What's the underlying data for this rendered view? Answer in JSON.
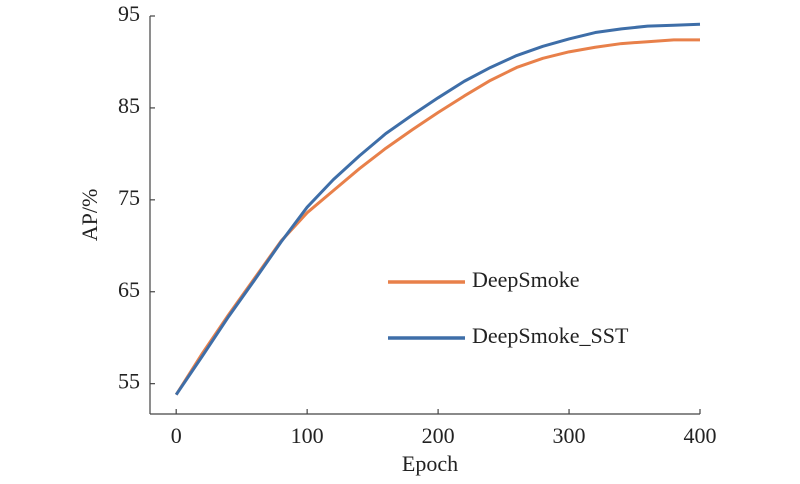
{
  "chart_data": {
    "type": "line",
    "x_label": "Epoch",
    "y_label": "AP/%",
    "x": [
      0,
      20,
      40,
      60,
      80,
      100,
      120,
      140,
      160,
      180,
      200,
      220,
      240,
      260,
      280,
      300,
      320,
      340,
      360,
      380,
      400
    ],
    "series": [
      {
        "name": "DeepSmoke",
        "color": "#e8804a",
        "values": [
          53.8,
          58.3,
          62.5,
          66.5,
          70.5,
          73.6,
          76.0,
          78.4,
          80.6,
          82.6,
          84.5,
          86.3,
          88.0,
          89.4,
          90.4,
          91.1,
          91.6,
          92.0,
          92.2,
          92.4,
          92.4
        ]
      },
      {
        "name": "DeepSmoke_SST",
        "color": "#3e6ea8",
        "values": [
          53.8,
          58.0,
          62.3,
          66.3,
          70.4,
          74.2,
          77.2,
          79.8,
          82.2,
          84.2,
          86.1,
          87.9,
          89.4,
          90.7,
          91.7,
          92.5,
          93.2,
          93.6,
          93.9,
          94.0,
          94.1
        ]
      }
    ],
    "xlim": [
      -20,
      400
    ],
    "ylim": [
      51.7,
      95
    ],
    "xticks": [
      0,
      100,
      200,
      300,
      400
    ],
    "yticks": [
      55,
      65,
      75,
      85,
      95
    ],
    "grid": false
  }
}
